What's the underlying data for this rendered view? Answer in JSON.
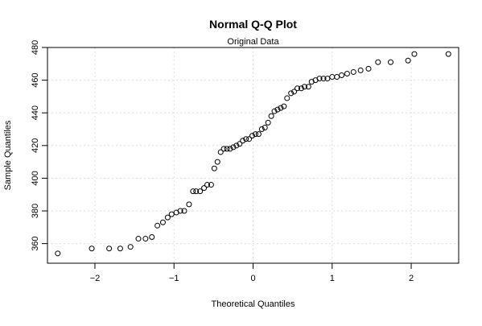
{
  "chart_data": {
    "type": "scatter",
    "title": "Normal Q-Q Plot",
    "subtitle": "Original Data",
    "xlabel": "Theoretical Quantiles",
    "ylabel": "Sample Quantiles",
    "xlim": [
      -2.6,
      2.6
    ],
    "ylim": [
      348,
      480
    ],
    "xticks": [
      -2,
      -1,
      0,
      1,
      2
    ],
    "yticks": [
      360,
      380,
      400,
      420,
      440,
      460,
      480
    ],
    "grid": true,
    "point_style": "open-circle",
    "points": [
      [
        -2.47,
        354
      ],
      [
        -2.04,
        357
      ],
      [
        -1.82,
        357
      ],
      [
        -1.68,
        357
      ],
      [
        -1.55,
        358
      ],
      [
        -1.45,
        363
      ],
      [
        -1.36,
        363
      ],
      [
        -1.28,
        364
      ],
      [
        -1.21,
        371
      ],
      [
        -1.14,
        373
      ],
      [
        -1.08,
        376
      ],
      [
        -1.03,
        378
      ],
      [
        -0.97,
        379
      ],
      [
        -0.92,
        380
      ],
      [
        -0.87,
        380
      ],
      [
        -0.81,
        384
      ],
      [
        -0.76,
        392
      ],
      [
        -0.72,
        392
      ],
      [
        -0.67,
        392
      ],
      [
        -0.62,
        394
      ],
      [
        -0.58,
        396
      ],
      [
        -0.53,
        396
      ],
      [
        -0.49,
        406
      ],
      [
        -0.45,
        410
      ],
      [
        -0.41,
        416
      ],
      [
        -0.37,
        418
      ],
      [
        -0.33,
        418
      ],
      [
        -0.29,
        418
      ],
      [
        -0.25,
        419
      ],
      [
        -0.21,
        420
      ],
      [
        -0.17,
        421
      ],
      [
        -0.13,
        423
      ],
      [
        -0.09,
        424
      ],
      [
        -0.05,
        424
      ],
      [
        -0.01,
        426
      ],
      [
        0.03,
        427
      ],
      [
        0.07,
        427
      ],
      [
        0.11,
        430
      ],
      [
        0.15,
        431
      ],
      [
        0.19,
        434
      ],
      [
        0.23,
        438
      ],
      [
        0.27,
        441
      ],
      [
        0.31,
        442
      ],
      [
        0.35,
        443
      ],
      [
        0.39,
        444
      ],
      [
        0.43,
        449
      ],
      [
        0.48,
        452
      ],
      [
        0.52,
        453
      ],
      [
        0.56,
        455
      ],
      [
        0.61,
        455
      ],
      [
        0.65,
        456
      ],
      [
        0.7,
        456
      ],
      [
        0.74,
        459
      ],
      [
        0.79,
        460
      ],
      [
        0.84,
        461
      ],
      [
        0.89,
        461
      ],
      [
        0.94,
        461
      ],
      [
        1.0,
        462
      ],
      [
        1.06,
        462
      ],
      [
        1.12,
        463
      ],
      [
        1.19,
        464
      ],
      [
        1.27,
        465
      ],
      [
        1.36,
        466
      ],
      [
        1.46,
        467
      ],
      [
        1.58,
        471
      ],
      [
        1.74,
        471
      ],
      [
        1.96,
        472
      ],
      [
        2.04,
        476
      ],
      [
        2.47,
        476
      ]
    ]
  }
}
